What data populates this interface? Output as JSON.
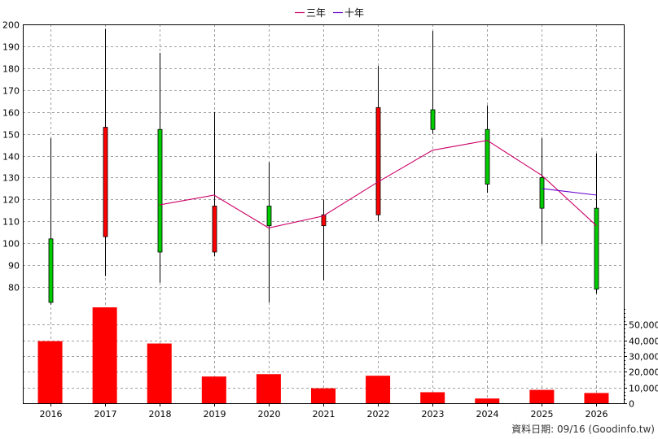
{
  "chart_data": {
    "type": "candlestick",
    "x_categories": [
      "2016",
      "2017",
      "2018",
      "2019",
      "2020",
      "2021",
      "2022",
      "2023",
      "2024",
      "2025",
      "2026"
    ],
    "price_axis": {
      "ylim": [
        70,
        200
      ],
      "ticks": [
        80,
        90,
        100,
        110,
        120,
        130,
        140,
        150,
        160,
        170,
        180,
        190,
        200
      ]
    },
    "volume_axis": {
      "ylim": [
        0,
        60000
      ],
      "ticks": [
        0,
        10000,
        20000,
        30000,
        40000,
        50000
      ],
      "tick_labels": [
        "0",
        "10,000",
        "20,000",
        "30,000",
        "40,000",
        "50,000"
      ]
    },
    "candles": [
      {
        "year": "2016",
        "open": 102,
        "high": 148,
        "low": 72,
        "close": 73,
        "direction": "down"
      },
      {
        "year": "2017",
        "open": 103,
        "high": 198,
        "low": 85,
        "close": 153,
        "direction": "up"
      },
      {
        "year": "2018",
        "open": 152,
        "high": 187,
        "low": 82,
        "close": 96,
        "direction": "down"
      },
      {
        "year": "2019",
        "open": 96,
        "high": 160,
        "low": 94,
        "close": 117,
        "direction": "up"
      },
      {
        "year": "2020",
        "open": 117,
        "high": 137,
        "low": 73,
        "close": 108,
        "direction": "down"
      },
      {
        "year": "2021",
        "open": 108,
        "high": 120,
        "low": 83,
        "close": 113,
        "direction": "up"
      },
      {
        "year": "2022",
        "open": 113,
        "high": 181,
        "low": 110,
        "close": 162,
        "direction": "up"
      },
      {
        "year": "2023",
        "open": 161,
        "high": 197,
        "low": 150,
        "close": 152,
        "direction": "down"
      },
      {
        "year": "2024",
        "open": 152,
        "high": 163,
        "low": 123,
        "close": 127,
        "direction": "down"
      },
      {
        "year": "2025",
        "open": 130,
        "high": 148,
        "low": 100,
        "close": 116,
        "direction": "down"
      },
      {
        "year": "2026",
        "open": 116,
        "high": 141,
        "low": 77,
        "close": 79,
        "direction": "down"
      }
    ],
    "volume": [
      39500,
      61000,
      38000,
      17000,
      18500,
      9500,
      17500,
      7000,
      3000,
      8500,
      6500
    ],
    "series": [
      {
        "name": "三年",
        "color": "#cc0066",
        "x": [
          "2018",
          "2019",
          "2020",
          "2021",
          "2022",
          "2023",
          "2024",
          "2025",
          "2026"
        ],
        "values": [
          117.5,
          122,
          107,
          112.5,
          128,
          142.5,
          147,
          131,
          108
        ]
      },
      {
        "name": "十年",
        "color": "#6600cc",
        "x": [
          "2025",
          "2026"
        ],
        "values": [
          125,
          122
        ]
      }
    ],
    "legend": {
      "position": "top-center"
    },
    "grid": true,
    "colors": {
      "up": "#ff0000",
      "down": "#00cc00",
      "volume": "#ff0000",
      "wick": "#000000"
    }
  },
  "footer": {
    "credit": "資料日期: 09/16  (Goodinfo.tw)"
  }
}
